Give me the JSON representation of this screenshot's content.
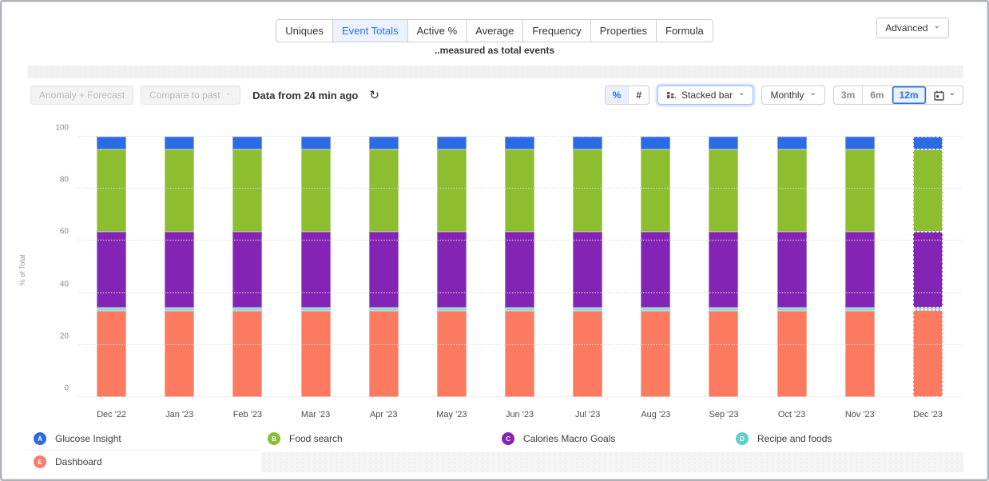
{
  "tabs": {
    "items": [
      {
        "label": "Uniques",
        "selected": false
      },
      {
        "label": "Event Totals",
        "selected": true
      },
      {
        "label": "Active %",
        "selected": false
      },
      {
        "label": "Average",
        "selected": false
      },
      {
        "label": "Frequency",
        "selected": false
      },
      {
        "label": "Properties",
        "selected": false
      },
      {
        "label": "Formula",
        "selected": false
      }
    ],
    "subtitle": "..measured as total events",
    "advanced_label": "Advanced"
  },
  "toolbar": {
    "anomaly_forecast_label": "Anomaly + Forecast",
    "compare_to_past_label": "Compare to past",
    "data_freshness": "Data from 24 min ago",
    "refresh_icon_glyph": "↻",
    "value_mode": {
      "options": [
        "%",
        "#"
      ],
      "selected": "%"
    },
    "chart_type_label": "Stacked bar",
    "interval_label": "Monthly",
    "ranges": {
      "options": [
        "3m",
        "6m",
        "12m"
      ],
      "selected": "12m"
    }
  },
  "chart_data": {
    "type": "bar",
    "stacked": true,
    "percent_mode": true,
    "ylabel": "% of Total",
    "ylim": [
      0,
      100
    ],
    "yticks": [
      0,
      20,
      40,
      60,
      80,
      100
    ],
    "grid": "dotted horizontal",
    "categories": [
      "Dec '22",
      "Jan '23",
      "Feb '23",
      "Mar '23",
      "Apr '23",
      "May '23",
      "Jun '23",
      "Jul '23",
      "Aug '23",
      "Sep '23",
      "Oct '23",
      "Nov '23",
      "Dec '23"
    ],
    "series_bottom_to_top": [
      {
        "name": "Dashboard",
        "letter": "E",
        "color": "#FC7A5F",
        "values": [
          33,
          33,
          33,
          33,
          33,
          33,
          33,
          33,
          33,
          33,
          33,
          33,
          33.5
        ]
      },
      {
        "name": "Recipe and foods",
        "letter": "D",
        "color": "#7FD9D9",
        "values": [
          1.5,
          1.5,
          1.5,
          1.5,
          1.5,
          1.5,
          1.5,
          1.5,
          1.5,
          1.5,
          1.5,
          1.5,
          1
        ]
      },
      {
        "name": "Calories Macro Goals",
        "letter": "C",
        "color": "#8424B4",
        "values": [
          29,
          29,
          29,
          29,
          29,
          29,
          29,
          29,
          29,
          29,
          29,
          29,
          29
        ]
      },
      {
        "name": "Food search",
        "letter": "B",
        "color": "#8CBE30",
        "values": [
          31.5,
          31.5,
          31.5,
          31.5,
          31.5,
          31.5,
          31.5,
          31.5,
          31.5,
          31.5,
          31.5,
          31.5,
          31.5
        ]
      },
      {
        "name": "Glucose Insight",
        "letter": "A",
        "color": "#2D6BE4",
        "values": [
          5,
          5,
          5,
          5,
          5,
          5,
          5,
          5,
          5,
          5,
          5,
          5,
          5
        ]
      }
    ],
    "partial_last_period": true,
    "legend_position": "bottom"
  },
  "legend": {
    "items": [
      {
        "letter": "A",
        "label": "Glucose Insight",
        "color": "#2D6BE4"
      },
      {
        "letter": "B",
        "label": "Food search",
        "color": "#8CBE30"
      },
      {
        "letter": "C",
        "label": "Calories Macro Goals",
        "color": "#8424B4"
      },
      {
        "letter": "D",
        "label": "Recipe and foods",
        "color": "#5FCFC8"
      },
      {
        "letter": "E",
        "label": "Dashboard",
        "color": "#F97D66"
      }
    ]
  }
}
